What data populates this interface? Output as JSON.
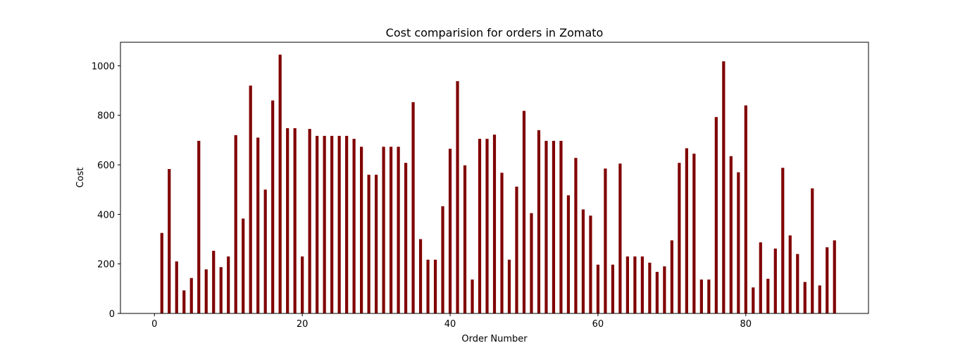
{
  "chart_data": {
    "type": "bar",
    "title": "Cost comparision for orders in Zomato",
    "xlabel": "Order Number",
    "ylabel": "Cost",
    "xlim": [
      -4.6,
      96.6
    ],
    "ylim": [
      0,
      1095
    ],
    "xticks": [
      0,
      20,
      40,
      60,
      80
    ],
    "yticks": [
      0,
      200,
      400,
      600,
      800,
      1000
    ],
    "grid": false,
    "bar_color": "#800000",
    "x": [
      1,
      2,
      3,
      4,
      5,
      6,
      7,
      8,
      9,
      10,
      11,
      12,
      13,
      14,
      15,
      16,
      17,
      18,
      19,
      20,
      21,
      22,
      23,
      24,
      25,
      26,
      27,
      28,
      29,
      30,
      31,
      32,
      33,
      34,
      35,
      36,
      37,
      38,
      39,
      40,
      41,
      42,
      43,
      44,
      45,
      46,
      47,
      48,
      49,
      50,
      51,
      52,
      53,
      54,
      55,
      56,
      57,
      58,
      59,
      60,
      61,
      62,
      63,
      64,
      65,
      66,
      67,
      68,
      69,
      70,
      71,
      72,
      73,
      74,
      75,
      76,
      77,
      78,
      79,
      80,
      81,
      82,
      83,
      84,
      85,
      86,
      87,
      88,
      89,
      90,
      91,
      92
    ],
    "values": [
      325,
      583,
      210,
      93,
      143,
      697,
      178,
      253,
      187,
      230,
      720,
      383,
      920,
      710,
      500,
      860,
      1045,
      748,
      748,
      230,
      745,
      717,
      717,
      717,
      717,
      717,
      705,
      673,
      560,
      560,
      673,
      673,
      673,
      608,
      853,
      300,
      217,
      217,
      433,
      665,
      938,
      598,
      137,
      705,
      705,
      722,
      568,
      217,
      512,
      818,
      405,
      740,
      697,
      697,
      697,
      477,
      628,
      420,
      395,
      197,
      585,
      197,
      605,
      230,
      230,
      230,
      205,
      168,
      190,
      295,
      608,
      667,
      645,
      137,
      137,
      793,
      1018,
      635,
      570,
      840,
      105,
      287,
      140,
      262,
      588,
      315,
      240,
      127,
      505,
      113,
      267,
      295
    ]
  }
}
